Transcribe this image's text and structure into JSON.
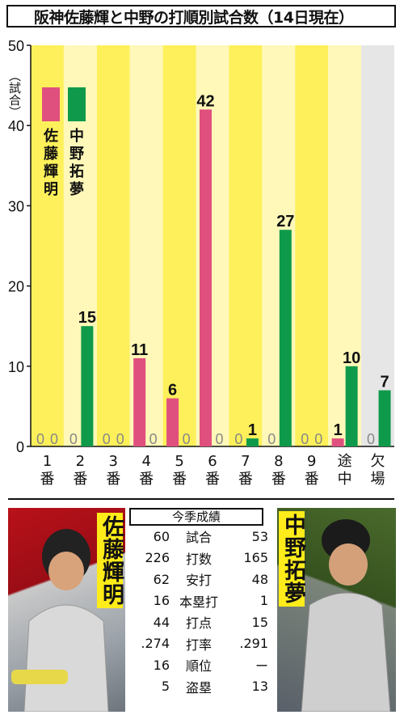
{
  "title": "阪神佐藤輝と中野の打順別試合数（14日現在）",
  "colors": {
    "yellow": "#fdf05a",
    "pale_yellow": "#fff8b8",
    "gray_band": "#e6e6e6",
    "sato": "#e0507f",
    "nakano": "#0f9a4b",
    "name_bg": "#ffec1a"
  },
  "chart_data": {
    "type": "bar",
    "ylabel": "（試合）",
    "ylim": [
      0,
      50
    ],
    "yticks": [
      "0",
      "10",
      "20",
      "30",
      "40",
      "50"
    ],
    "categories": [
      "1番",
      "2番",
      "3番",
      "4番",
      "5番",
      "6番",
      "7番",
      "8番",
      "9番",
      "途中",
      "欠場"
    ],
    "series": [
      {
        "name": "佐藤輝明",
        "values": [
          0,
          0,
          0,
          11,
          6,
          42,
          0,
          0,
          0,
          1,
          0
        ]
      },
      {
        "name": "中野拓夢",
        "values": [
          0,
          15,
          0,
          0,
          0,
          0,
          1,
          27,
          0,
          10,
          7
        ]
      }
    ],
    "grid": false,
    "legend": "top-left"
  },
  "stats": {
    "header": "今季成績",
    "rows": [
      {
        "label": "試合",
        "sato": "60",
        "nakano": "53"
      },
      {
        "label": "打数",
        "sato": "226",
        "nakano": "165"
      },
      {
        "label": "安打",
        "sato": "62",
        "nakano": "48"
      },
      {
        "label": "本塁打",
        "sato": "16",
        "nakano": "1"
      },
      {
        "label": "打点",
        "sato": "44",
        "nakano": "15"
      },
      {
        "label": "打率",
        "sato": ".274",
        "nakano": ".291"
      },
      {
        "label": "順位",
        "sato": "16",
        "nakano": "ー"
      },
      {
        "label": "盗塁",
        "sato": "5",
        "nakano": "13"
      }
    ]
  },
  "players": {
    "left_name": "佐藤輝明",
    "right_name": "中野拓夢"
  }
}
